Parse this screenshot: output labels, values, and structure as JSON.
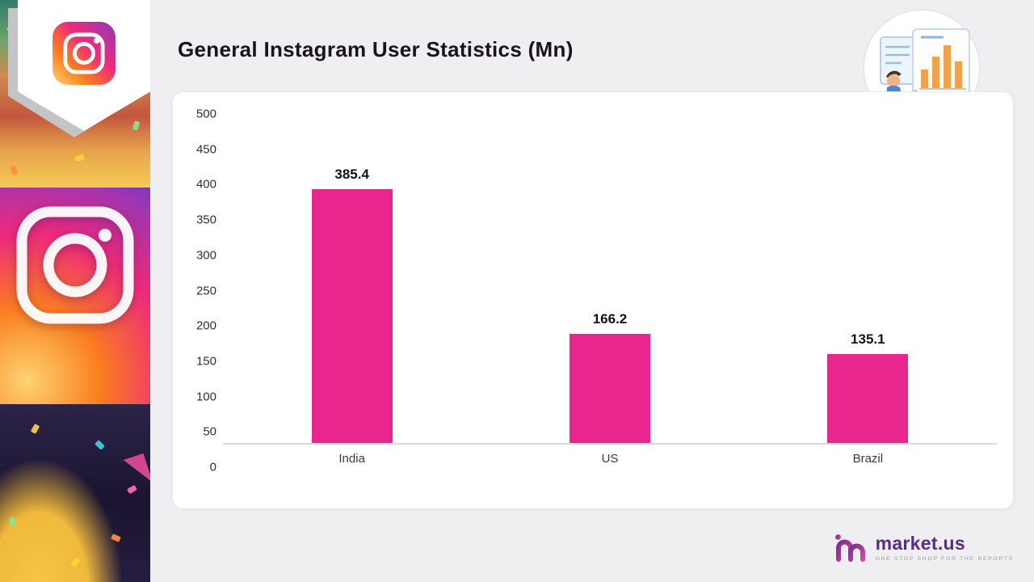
{
  "header": {
    "title": "General Instagram User Statistics (Mn)"
  },
  "chart_data": {
    "type": "bar",
    "title": "General Instagram User Statistics (Mn)",
    "categories": [
      "India",
      "US",
      "Brazil"
    ],
    "values": [
      385.4,
      166.2,
      135.1
    ],
    "ylim": [
      0,
      500
    ],
    "yticks": [
      500,
      450,
      400,
      350,
      300,
      250,
      200,
      150,
      100,
      50,
      0
    ],
    "xlabel": "",
    "ylabel": "",
    "grid": false,
    "legend": false,
    "bar_color": "#E8268E"
  },
  "branding": {
    "name": "market.us",
    "tagline": "ONE STOP SHOP FOR THE REPORTS",
    "name_color": "#5B2B8A"
  },
  "colors": {
    "background": "#EFEFF1",
    "card": "#FFFFFF",
    "bar": "#E8268E",
    "title_text": "#17141F"
  }
}
